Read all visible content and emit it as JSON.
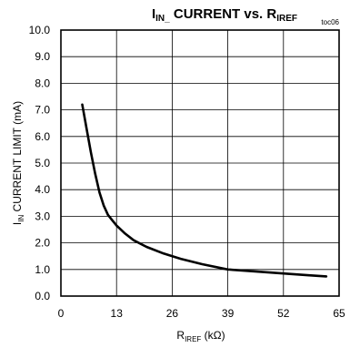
{
  "chart_data": {
    "type": "line",
    "title": {
      "prefix": "I",
      "prefix_sub": "IN_",
      "middle": " CURRENT vs. R",
      "suffix_sub": "IREF"
    },
    "tag": "toc06",
    "xlabel": {
      "main": "R",
      "sub": "IREF",
      "unit": " (kΩ)"
    },
    "ylabel": {
      "main": "I",
      "sub": "IN",
      "rest": " CURRENT LIMIT (mA)"
    },
    "xlim": [
      0,
      65
    ],
    "ylim": [
      0,
      10
    ],
    "xticks": [
      0,
      13,
      26,
      39,
      52,
      65
    ],
    "yticks": [
      0,
      1,
      2,
      3,
      4,
      5,
      6,
      7,
      8,
      9,
      10
    ],
    "xtick_labels": [
      "0",
      "13",
      "26",
      "39",
      "52",
      "65"
    ],
    "ytick_labels": [
      "0.0",
      "1.0",
      "2.0",
      "3.0",
      "4.0",
      "5.0",
      "6.0",
      "7.0",
      "8.0",
      "9.0",
      "10.0"
    ],
    "grid": true,
    "series": [
      {
        "x": [
          5,
          6,
          7,
          8,
          9,
          10,
          11,
          12,
          13,
          15,
          17,
          20,
          24,
          28,
          33,
          39,
          45,
          52,
          58,
          62
        ],
        "y": [
          7.2,
          6.3,
          5.4,
          4.6,
          3.9,
          3.4,
          3.05,
          2.85,
          2.65,
          2.35,
          2.1,
          1.85,
          1.6,
          1.4,
          1.2,
          1.0,
          0.93,
          0.85,
          0.78,
          0.74
        ]
      }
    ]
  }
}
